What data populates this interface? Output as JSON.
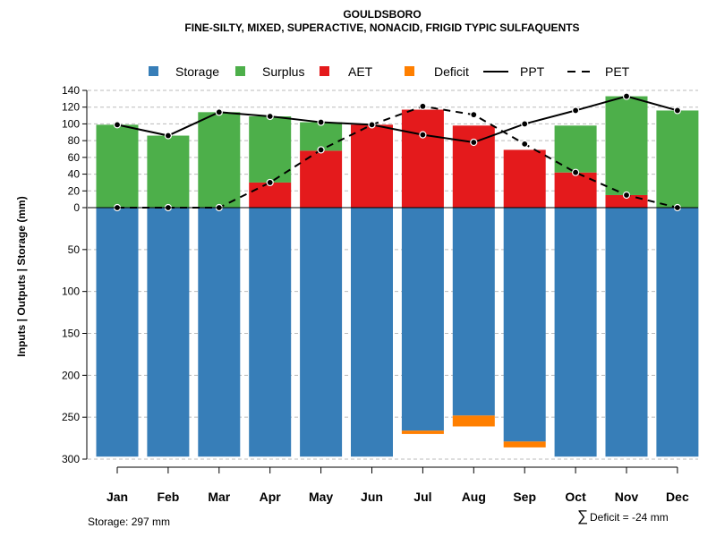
{
  "chart_data": {
    "type": "bar",
    "title": "GOULDSBORO",
    "subtitle": "FINE-SILTY, MIXED, SUPERACTIVE, NONACID, FRIGID TYPIC SULFAQUENTS",
    "ylabel": "Inputs | Outputs | Storage     (mm)",
    "categories": [
      "Jan",
      "Feb",
      "Mar",
      "Apr",
      "May",
      "Jun",
      "Jul",
      "Aug",
      "Sep",
      "Oct",
      "Nov",
      "Dec"
    ],
    "upper_ticks": [
      "140",
      "120",
      "100",
      "80",
      "60",
      "40",
      "20",
      "0"
    ],
    "lower_ticks": [
      "50",
      "100",
      "150",
      "200",
      "250",
      "300"
    ],
    "ylim_upper": [
      0,
      140
    ],
    "ylim_lower": [
      0,
      300
    ],
    "legend": [
      {
        "name": "Storage",
        "color": "#377EB8",
        "type": "box"
      },
      {
        "name": "Surplus",
        "color": "#4DAF4A",
        "type": "box"
      },
      {
        "name": "AET",
        "color": "#E41A1C",
        "type": "box"
      },
      {
        "name": "Deficit",
        "color": "#FF7F00",
        "type": "box"
      },
      {
        "name": "PPT",
        "color": "#000000",
        "type": "solid"
      },
      {
        "name": "PET",
        "color": "#000000",
        "type": "dashed"
      }
    ],
    "series": [
      {
        "name": "AET",
        "values": [
          0,
          0,
          0,
          30,
          68,
          99,
          117,
          98,
          69,
          42,
          15,
          0
        ]
      },
      {
        "name": "Surplus",
        "values": [
          99,
          86,
          114,
          79,
          34,
          0,
          0,
          0,
          0,
          56,
          118,
          116
        ]
      },
      {
        "name": "Storage",
        "values": [
          297,
          297,
          297,
          297,
          297,
          297,
          266,
          248,
          279,
          297,
          297,
          297
        ]
      },
      {
        "name": "Deficit",
        "values": [
          0,
          0,
          0,
          0,
          0,
          0,
          4,
          13,
          7,
          0,
          0,
          0
        ]
      },
      {
        "name": "PPT",
        "values": [
          99,
          86,
          114,
          109,
          102,
          99,
          87,
          78,
          100,
          116,
          133,
          116
        ]
      },
      {
        "name": "PET",
        "values": [
          0,
          0,
          0,
          30,
          69,
          99,
          121,
          111,
          76,
          42,
          15,
          0
        ]
      }
    ]
  },
  "footer": {
    "storage_note": "Storage: 297 mm",
    "deficit_symbol": "∑",
    "deficit_note": "Deficit = -24 mm"
  }
}
